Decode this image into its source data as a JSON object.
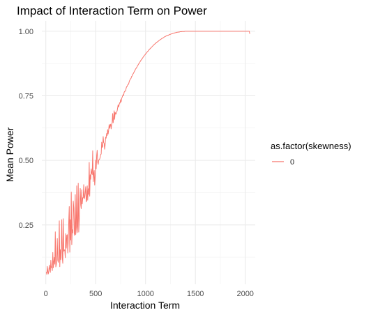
{
  "chart_data": {
    "type": "line",
    "title": "Impact of Interaction Term on Power",
    "xlabel": "Interaction Term",
    "ylabel": "Mean Power",
    "xlim": [
      -40,
      2100
    ],
    "ylim": [
      0.02,
      1.04
    ],
    "x_ticks": [
      0,
      500,
      1000,
      1500,
      2000
    ],
    "x_tick_labels": [
      "0",
      "500",
      "1000",
      "1500",
      "2000"
    ],
    "y_ticks": [
      0.25,
      0.5,
      0.75,
      1.0
    ],
    "y_tick_labels": [
      "0.25",
      "0.50",
      "0.75",
      "1.00"
    ],
    "grid": true,
    "legend": {
      "title": "as.factor(skewness)",
      "position": "right"
    },
    "series": [
      {
        "name": "0",
        "color": "#F8766D",
        "x_start": 5,
        "x_step": 5,
        "values": [
          0.068,
          0.058,
          0.089,
          0.069,
          0.06,
          0.074,
          0.094,
          0.078,
          0.066,
          0.113,
          0.085,
          0.087,
          0.073,
          0.143,
          0.084,
          0.107,
          0.124,
          0.098,
          0.223,
          0.087,
          0.097,
          0.116,
          0.197,
          0.113,
          0.105,
          0.126,
          0.266,
          0.088,
          0.154,
          0.115,
          0.159,
          0.27,
          0.123,
          0.101,
          0.274,
          0.148,
          0.153,
          0.153,
          0.123,
          0.216,
          0.16,
          0.21,
          0.212,
          0.141,
          0.187,
          0.265,
          0.321,
          0.144,
          0.27,
          0.191,
          0.377,
          0.173,
          0.231,
          0.219,
          0.342,
          0.316,
          0.216,
          0.209,
          0.367,
          0.213,
          0.24,
          0.401,
          0.22,
          0.245,
          0.411,
          0.222,
          0.267,
          0.338,
          0.391,
          0.327,
          0.313,
          0.386,
          0.331,
          0.355,
          0.355,
          0.406,
          0.351,
          0.357,
          0.378,
          0.398,
          0.339,
          0.346,
          0.401,
          0.346,
          0.39,
          0.368,
          0.492,
          0.361,
          0.444,
          0.427,
          0.467,
          0.45,
          0.445,
          0.537,
          0.418,
          0.449,
          0.461,
          0.404,
          0.439,
          0.501,
          0.467,
          0.519,
          0.539,
          0.493,
          0.484,
          0.499,
          0.503,
          0.505,
          0.512,
          0.523,
          0.524,
          0.57,
          0.55,
          0.554,
          0.592,
          0.569,
          0.566,
          0.543,
          0.561,
          0.59,
          0.586,
          0.604,
          0.596,
          0.619,
          0.602,
          0.617,
          0.639,
          0.624,
          0.635,
          0.64,
          0.622,
          0.639,
          0.645,
          0.681,
          0.645,
          0.663,
          0.692,
          0.659,
          0.686,
          0.679,
          0.679,
          0.687,
          0.691,
          0.703,
          0.715,
          0.706,
          0.714,
          0.723,
          0.722,
          0.735,
          0.726,
          0.739,
          0.744,
          0.75,
          0.754,
          0.751,
          0.763,
          0.767,
          0.768,
          0.768,
          0.779,
          0.785,
          0.786,
          0.792,
          0.794,
          0.795,
          0.803,
          0.809,
          0.812,
          0.816,
          0.818,
          0.825,
          0.826,
          0.833,
          0.835,
          0.838,
          0.842,
          0.846,
          0.849,
          0.854,
          0.856,
          0.859,
          0.862,
          0.867,
          0.869,
          0.873,
          0.875,
          0.878,
          0.882,
          0.885,
          0.888,
          0.891,
          0.893,
          0.896,
          0.899,
          0.902,
          0.904,
          0.907,
          0.909,
          0.912,
          0.914,
          0.916,
          0.919,
          0.921,
          0.923,
          0.926,
          0.928,
          0.93,
          0.932,
          0.934,
          0.936,
          0.938,
          0.94,
          0.942,
          0.944,
          0.946,
          0.948,
          0.95,
          0.951,
          0.953,
          0.955,
          0.956,
          0.958,
          0.959,
          0.961,
          0.962,
          0.964,
          0.965,
          0.967,
          0.968,
          0.969,
          0.971,
          0.972,
          0.973,
          0.974,
          0.975,
          0.977,
          0.978,
          0.979,
          0.98,
          0.981,
          0.982,
          0.983,
          0.984,
          0.984,
          0.985,
          0.986,
          0.987,
          0.988,
          0.988,
          0.989,
          0.99,
          0.99,
          0.991,
          0.992,
          0.992,
          0.993,
          0.993,
          0.994,
          0.994,
          0.995,
          0.995,
          0.996,
          0.996,
          0.996,
          0.997,
          0.997,
          0.997,
          0.998,
          0.998,
          0.998,
          0.998,
          0.999,
          0.999,
          0.999,
          0.999,
          0.999,
          0.999,
          1.0,
          1.0,
          1.0,
          1.0,
          1.0,
          1.0,
          1.0,
          1.0,
          1.0,
          1.0,
          1.0,
          1.0,
          1.0,
          1.0,
          1.0,
          1.0,
          1.0,
          1.0,
          1.0,
          1.0,
          1.0,
          1.0,
          1.0,
          1.0,
          1.0,
          1.0,
          1.0,
          1.0,
          1.0,
          1.0,
          1.0,
          1.0,
          1.0,
          1.0,
          1.0,
          1.0,
          1.0,
          1.0,
          1.0,
          1.0,
          1.0,
          1.0,
          1.0,
          1.0,
          1.0,
          1.0,
          1.0,
          1.0,
          1.0,
          1.0,
          1.0,
          1.0,
          1.0,
          1.0,
          1.0,
          1.0,
          1.0,
          1.0,
          1.0,
          1.0,
          1.0,
          1.0,
          1.0,
          1.0,
          1.0,
          1.0,
          1.0,
          1.0,
          1.0,
          1.0,
          1.0,
          1.0,
          1.0,
          1.0,
          1.0,
          1.0,
          1.0,
          1.0,
          1.0,
          1.0,
          1.0,
          1.0,
          1.0,
          1.0,
          1.0,
          1.0,
          1.0,
          1.0,
          1.0,
          1.0,
          1.0,
          1.0,
          1.0,
          1.0,
          1.0,
          1.0,
          1.0,
          1.0,
          1.0,
          1.0,
          1.0,
          1.0,
          1.0,
          1.0,
          1.0,
          1.0,
          1.0,
          1.0,
          1.0,
          1.0,
          1.0,
          1.0,
          1.0,
          1.0,
          1.0,
          1.0,
          1.0,
          1.0,
          1.0,
          1.0,
          1.0,
          1.0,
          1.0,
          1.0,
          1.0,
          1.0,
          1.0,
          1.0,
          1.0,
          1.0,
          0.99
        ]
      }
    ]
  }
}
